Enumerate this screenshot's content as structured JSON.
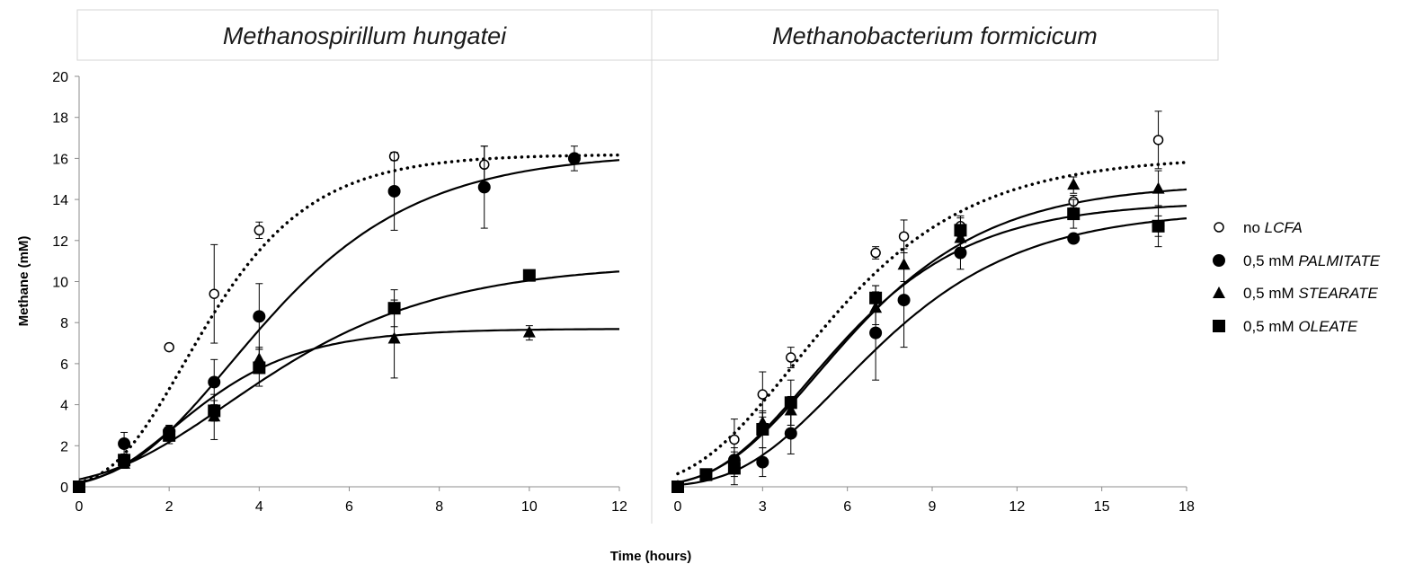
{
  "xlabel": "Time (hours)",
  "ylabel": "Methane (mM)",
  "legend": {
    "placement": "right",
    "items": [
      {
        "prefix": "no ",
        "name": "LCFA",
        "marker": "open-circle-icon"
      },
      {
        "prefix": "0,5 mM ",
        "name": "PALMITATE",
        "marker": "filled-circle-icon"
      },
      {
        "prefix": "0,5 mM ",
        "name": "STEARATE",
        "marker": "filled-triangle-icon"
      },
      {
        "prefix": "0,5 mM ",
        "name": "OLEATE",
        "marker": "filled-square-icon"
      }
    ]
  },
  "chart_data": [
    {
      "type": "scatter",
      "title": "Methanospirillum hungatei",
      "xlabel": "Time (hours)",
      "ylabel": "Methane (mM)",
      "xlim": [
        0,
        12
      ],
      "ylim": [
        0,
        20
      ],
      "xticks": [
        0,
        2,
        4,
        6,
        8,
        10,
        12
      ],
      "yticks": [
        0,
        2,
        4,
        6,
        8,
        10,
        12,
        14,
        16,
        18,
        20
      ],
      "grid": false,
      "series": [
        {
          "name": "no LCFA",
          "marker": "open-circle",
          "line": "dotted",
          "x": [
            0,
            1,
            2,
            3,
            4,
            7,
            9
          ],
          "y": [
            0,
            1.3,
            6.8,
            9.4,
            12.5,
            16.1,
            15.7
          ],
          "err": [
            0,
            0.3,
            0,
            2.4,
            0.4,
            0.2,
            0.9
          ],
          "fit": {
            "A": 16.2,
            "mu": 3.8,
            "lambda": 0.75
          }
        },
        {
          "name": "0,5 mM PALMITATE",
          "marker": "filled-circle",
          "line": "solid",
          "x": [
            0,
            1,
            2,
            3,
            4,
            7,
            9,
            11
          ],
          "y": [
            0,
            2.1,
            2.7,
            5.1,
            8.3,
            14.4,
            14.6,
            16.0
          ],
          "err": [
            0,
            0.55,
            0.3,
            1.1,
            1.6,
            1.9,
            2.0,
            0.6
          ],
          "fit": {
            "A": 16.3,
            "mu": 2.6,
            "lambda": 1.05
          }
        },
        {
          "name": "0,5 mM STEARATE",
          "marker": "filled-triangle",
          "line": "solid",
          "x": [
            0,
            1,
            2,
            3,
            4,
            7,
            10
          ],
          "y": [
            0,
            1.1,
            2.5,
            3.4,
            6.2,
            7.2,
            7.5
          ],
          "err": [
            0,
            0.2,
            0.4,
            1.1,
            0.6,
            1.9,
            0.35
          ],
          "fit": {
            "A": 7.7,
            "mu": 1.8,
            "lambda": 0.5
          }
        },
        {
          "name": "0,5 mM OLEATE",
          "marker": "filled-square",
          "line": "solid",
          "x": [
            0,
            1,
            2,
            3,
            4,
            7,
            10
          ],
          "y": [
            0,
            1.3,
            2.5,
            3.7,
            5.8,
            8.7,
            10.3
          ],
          "err": [
            0,
            0.25,
            0.4,
            0.5,
            0.9,
            0.9,
            0.2
          ],
          "fit": {
            "A": 10.9,
            "mu": 1.5,
            "lambda": 0.6
          }
        }
      ]
    },
    {
      "type": "scatter",
      "title": "Methanobacterium formicicum",
      "xlabel": "Time (hours)",
      "ylabel": "Methane (mM)",
      "xlim": [
        0,
        18
      ],
      "ylim": [
        0,
        20
      ],
      "xticks": [
        0,
        3,
        6,
        9,
        12,
        15,
        18
      ],
      "yticks": [
        0,
        2,
        4,
        6,
        8,
        10,
        12,
        14,
        16,
        18,
        20
      ],
      "grid": false,
      "series": [
        {
          "name": "no LCFA",
          "marker": "open-circle",
          "line": "dotted",
          "x": [
            0,
            2,
            3,
            4,
            7,
            8,
            10,
            14,
            17
          ],
          "y": [
            0,
            2.3,
            4.5,
            6.3,
            11.4,
            12.2,
            12.7,
            13.9,
            16.9
          ],
          "err": [
            0,
            1.0,
            1.1,
            0.5,
            0.3,
            0.8,
            0.5,
            0.3,
            1.4
          ],
          "fit": {
            "A": 16.1,
            "mu": 1.7,
            "lambda": 0.6
          }
        },
        {
          "name": "0,5 mM PALMITATE",
          "marker": "filled-circle",
          "line": "solid",
          "x": [
            0,
            2,
            3,
            4,
            7,
            8,
            10,
            14,
            17
          ],
          "y": [
            0,
            1.3,
            1.2,
            2.6,
            7.5,
            9.1,
            11.4,
            12.1,
            12.7
          ],
          "err": [
            0,
            0.6,
            0.7,
            1.0,
            2.3,
            2.3,
            0.8,
            0.2,
            0.5
          ],
          "fit": {
            "A": 13.5,
            "mu": 1.4,
            "lambda": 2.2
          }
        },
        {
          "name": "0,5 mM STEARATE",
          "marker": "filled-triangle",
          "line": "solid",
          "x": [
            0,
            1,
            2,
            3,
            4,
            7,
            8,
            10,
            14,
            17
          ],
          "y": [
            0,
            0.5,
            0.9,
            3.1,
            3.7,
            8.7,
            10.8,
            12.1,
            14.7,
            14.5
          ],
          "err": [
            0,
            0.2,
            0.4,
            0.5,
            0.7,
            0.8,
            0.8,
            0.5,
            0.4,
            0.9
          ],
          "fit": {
            "A": 14.8,
            "mu": 1.6,
            "lambda": 1.5
          }
        },
        {
          "name": "0,5 mM OLEATE",
          "marker": "filled-square",
          "line": "solid",
          "x": [
            0,
            1,
            2,
            3,
            4,
            7,
            10,
            14,
            17
          ],
          "y": [
            0,
            0.6,
            0.9,
            2.8,
            4.1,
            9.2,
            12.5,
            13.3,
            12.7
          ],
          "err": [
            0,
            0.2,
            0.8,
            0.9,
            1.1,
            0.6,
            0.6,
            0.7,
            1.0
          ],
          "fit": {
            "A": 13.9,
            "mu": 1.6,
            "lambda": 1.4
          }
        }
      ]
    }
  ]
}
